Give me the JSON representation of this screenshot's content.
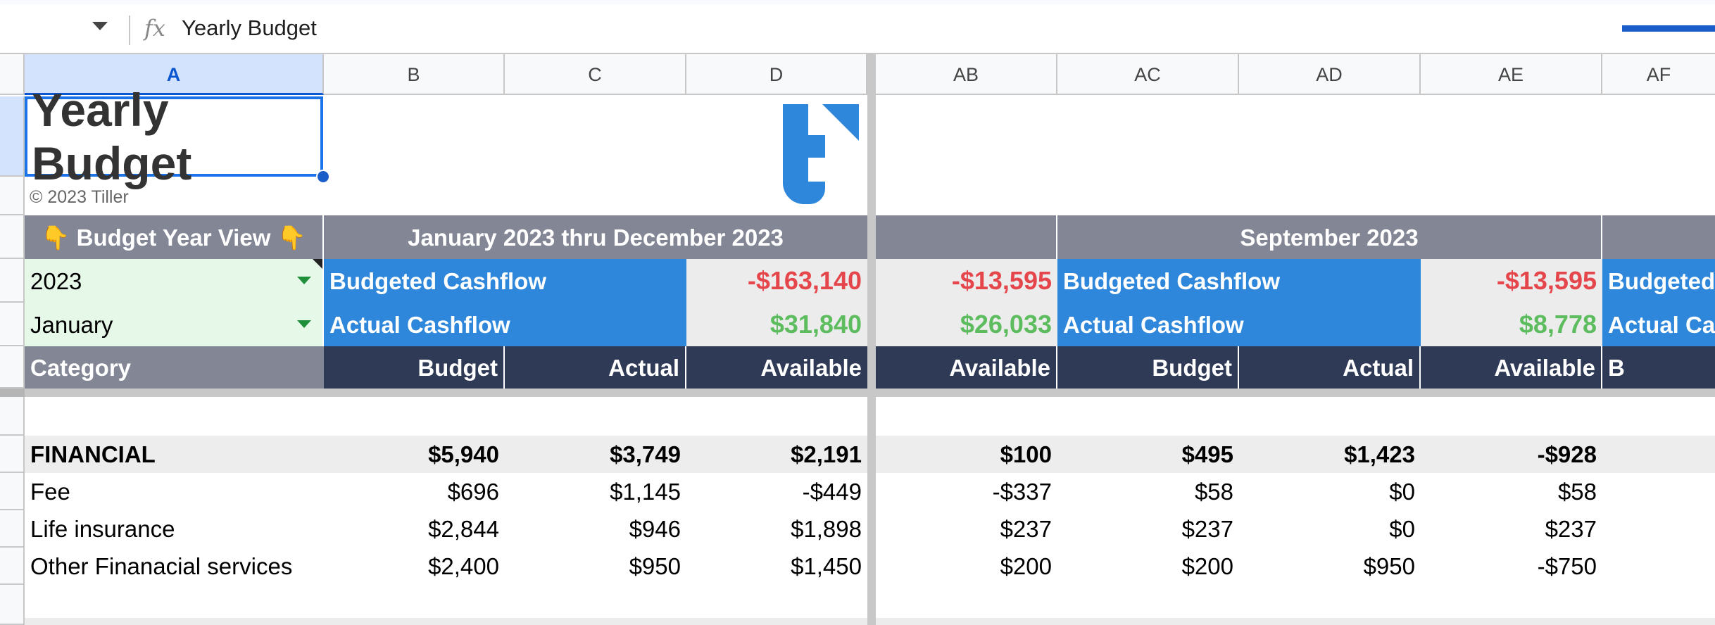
{
  "formula_bar": {
    "fx_symbol": "fx",
    "content": "Yearly Budget"
  },
  "columns": [
    "A",
    "B",
    "C",
    "D",
    "AB",
    "AC",
    "AD",
    "AE",
    "AF"
  ],
  "sheet": {
    "title": "Yearly Budget",
    "copyright": "© 2023 Tiller",
    "budget_year_view": "👇 Budget Year View 👇",
    "range_header": "January 2023 thru December 2023",
    "month_header": "September 2023",
    "year_value": "2023",
    "month_value": "January",
    "budgeted_cashflow_label": "Budgeted Cashflow",
    "actual_cashflow_label": "Actual Cashflow",
    "budgeted_cashflow_label_trunc": "Budgeted",
    "actual_cashflow_label_trunc": "Actual Cas",
    "budgeted_cashflow_total": "-$163,140",
    "actual_cashflow_total": "$31,840",
    "ab_budgeted": "-$13,595",
    "ab_actual": "$26,033",
    "ae_budgeted": "-$13,595",
    "ae_actual": "$8,778",
    "headers": {
      "category": "Category",
      "budget": "Budget",
      "actual": "Actual",
      "available": "Available",
      "af_trunc": "B"
    },
    "rows": [
      {
        "name": "FINANCIAL",
        "b": "$5,940",
        "c": "$3,749",
        "d": "$2,191",
        "ab": "$100",
        "ac": "$495",
        "ad": "$1,423",
        "ae": "-$928"
      },
      {
        "name": "Fee",
        "b": "$696",
        "c": "$1,145",
        "d": "-$449",
        "ab": "-$337",
        "ac": "$58",
        "ad": "$0",
        "ae": "$58"
      },
      {
        "name": "Life insurance",
        "b": "$2,844",
        "c": "$946",
        "d": "$1,898",
        "ab": "$237",
        "ac": "$237",
        "ad": "$0",
        "ae": "$237"
      },
      {
        "name": "Other Finanacial services",
        "b": "$2,400",
        "c": "$950",
        "d": "$1,450",
        "ab": "$200",
        "ac": "$200",
        "ad": "$950",
        "ae": "-$750"
      }
    ]
  },
  "colors": {
    "header_gray": "#838795",
    "accent_blue": "#2e87db",
    "navy": "#2f3a57",
    "negative_red": "#e4464b",
    "positive_green": "#5cbc5e"
  }
}
